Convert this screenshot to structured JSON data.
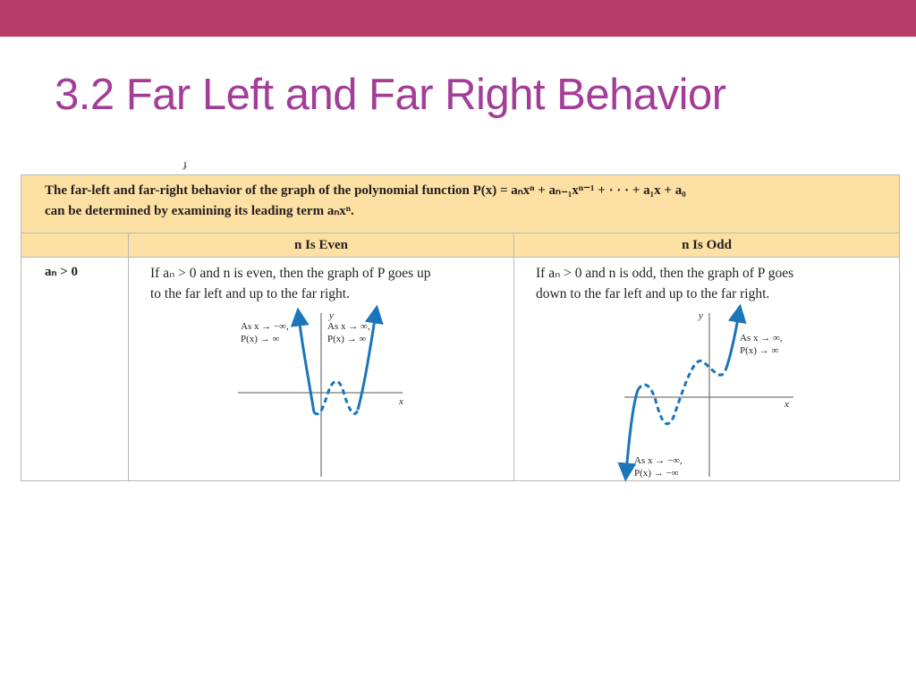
{
  "colors": {
    "top_bar": "#b83b68",
    "title": "#a23d98",
    "table_header_bg": "#fde0a3",
    "curve": "#1b75bb"
  },
  "slide": {
    "title": "3.2 Far Left and Far Right Behavior"
  },
  "table": {
    "intro_line1": "The far-left and far-right behavior of the graph of the polynomial function P(x) = aₙxⁿ + aₙ₋₁xⁿ⁻¹ + · · · + a₁x + a₀",
    "intro_line2": "can be determined by examining its leading term aₙxⁿ.",
    "columns": [
      "n Is Even",
      "n Is Odd"
    ],
    "row_condition": "aₙ > 0",
    "even_desc_line1": "If aₙ > 0 and n is even, then the graph of P goes up",
    "even_desc_line2": "to the far left and up to the far right.",
    "odd_desc_line1": "If aₙ > 0 and n is odd, then the graph of P goes",
    "odd_desc_line2": "down to the far left and up to the far right."
  },
  "even_graph": {
    "axis_y": "y",
    "axis_x": "x",
    "left_label_1": "As x → −∞,",
    "left_label_2": "P(x) → ∞",
    "right_label_1": "As x → ∞,",
    "right_label_2": "P(x) → ∞"
  },
  "odd_graph": {
    "axis_y": "y",
    "axis_x": "x",
    "right_label_1": "As x → ∞,",
    "right_label_2": "P(x) → ∞",
    "left_label_1": "As x → −∞,",
    "left_label_2": "P(x) → −∞"
  }
}
